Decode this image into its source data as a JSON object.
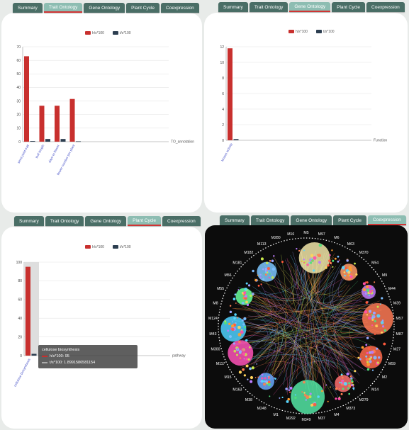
{
  "tabs": [
    "Summary",
    "Trait Ontology",
    "Gene Ontology",
    "Plant Cycle",
    "Coexpression"
  ],
  "legend": [
    "h/s*100",
    "t/s*100"
  ],
  "colors": {
    "series1": "#c8302e",
    "series2": "#2c3e50",
    "tab": "#4a6e66",
    "tab_active": "#8dbdb2"
  },
  "panels": {
    "trait": {
      "active_tab": "Trait Ontology",
      "chart_data": {
        "type": "bar",
        "categories": [
          "seed yield trait",
          "leaf length",
          "days to flower",
          "flower number per plant"
        ],
        "series": [
          {
            "name": "h/s*100",
            "values": [
              63,
              26.5,
              26.5,
              31.5
            ]
          },
          {
            "name": "t/s*100",
            "values": [
              0.5,
              2,
              2,
              0.3
            ]
          }
        ],
        "xlabel": "TO_annotation",
        "ylim": [
          0,
          70
        ],
        "yticks": [
          "0",
          "10",
          "20",
          "30",
          "40",
          "50",
          "60",
          "70"
        ],
        "grid": true,
        "legend_position": "top-center"
      }
    },
    "gene": {
      "active_tab": "Gene Ontology",
      "chart_data": {
        "type": "bar",
        "categories": [
          "kinase activity"
        ],
        "series": [
          {
            "name": "h/s*100",
            "values": [
              11.8
            ]
          },
          {
            "name": "t/s*100",
            "values": [
              0.15
            ]
          }
        ],
        "xlabel": "Function",
        "ylim": [
          0,
          12
        ],
        "yticks": [
          "0",
          "2",
          "4",
          "6",
          "8",
          "10",
          "12"
        ],
        "grid": true,
        "legend_position": "top-center"
      }
    },
    "plant": {
      "active_tab": "Plant Cycle",
      "chart_data": {
        "type": "bar",
        "categories": [
          "cellulose biosynthesis"
        ],
        "series": [
          {
            "name": "h/s*100",
            "values": [
              95
            ]
          },
          {
            "name": "t/s*100",
            "values": [
              1.8991
            ]
          }
        ],
        "xlabel": "pathway",
        "ylim": [
          0,
          100
        ],
        "yticks": [
          "0",
          "20",
          "40",
          "60",
          "80",
          "100"
        ],
        "grid": true,
        "legend_position": "top-center"
      },
      "tooltip": {
        "title": "cellulose biosynthesis",
        "line1": "h/s*100: 95",
        "line2": "t/s*100: 1.8991586581154"
      }
    },
    "coex": {
      "active_tab": "Coexpression",
      "module_labels": [
        "M5",
        "M97",
        "M6",
        "M63",
        "M370",
        "M54",
        "M9",
        "M44",
        "M39",
        "M57",
        "M87",
        "M27",
        "M59",
        "M2",
        "M14",
        "M279",
        "M373",
        "M4",
        "M37",
        "M349",
        "M292",
        "M1",
        "M248",
        "M38",
        "M163",
        "M15",
        "M117",
        "M300",
        "M43",
        "M124",
        "M8",
        "M55",
        "M56",
        "M181",
        "M182",
        "M113",
        "M280",
        "M16"
      ]
    }
  }
}
